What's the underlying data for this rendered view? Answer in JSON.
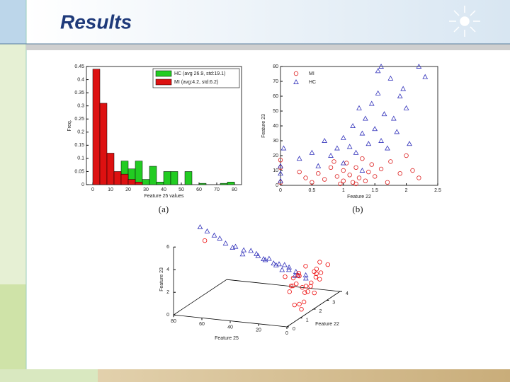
{
  "slide_title": "Results",
  "chart_data": [
    {
      "type": "histogram",
      "caption": "(a)",
      "xlabel": "Feature 25 values",
      "ylabel": "Freq.",
      "bins": [
        0,
        4,
        8,
        12,
        16,
        20,
        24,
        28,
        32,
        36,
        40,
        44,
        48,
        52,
        56,
        60,
        64,
        68,
        72,
        76,
        80,
        84
      ],
      "series": [
        {
          "name": "HC (avg 26.9, std:19.1)",
          "color": "#22cc22",
          "values": [
            0,
            0,
            0,
            0.04,
            0.09,
            0.06,
            0.09,
            0.02,
            0.07,
            0.01,
            0.05,
            0.05,
            0,
            0.05,
            0,
            0.005,
            0,
            0,
            0.005,
            0.01,
            0
          ]
        },
        {
          "name": "MI (avg:4.2, std:6.2)",
          "color": "#dd1111",
          "values": [
            0.44,
            0.31,
            0.12,
            0.05,
            0.04,
            0.02,
            0.01,
            0,
            0,
            0,
            0,
            0,
            0,
            0,
            0,
            0,
            0,
            0,
            0,
            0,
            0
          ]
        }
      ],
      "xlim": [
        -3.6,
        84
      ],
      "xticks": [
        0,
        10,
        20,
        30,
        40,
        50,
        60,
        70,
        80
      ],
      "ylim": [
        0,
        0.45
      ],
      "yticks": [
        0,
        0.05,
        0.1,
        0.15,
        0.2,
        0.25,
        0.3,
        0.35,
        0.4,
        0.45
      ],
      "legend": "upper right"
    },
    {
      "type": "scatter",
      "caption": "(b)",
      "xlabel": "Feature 22",
      "ylabel": "Feature 23",
      "series": [
        {
          "name": "MI",
          "color": "#dd2222",
          "marker": "circle",
          "x": [
            0,
            0,
            0,
            0.4,
            0.5,
            0.6,
            0.7,
            0.8,
            0.9,
            0.95,
            1,
            1,
            1.05,
            1.1,
            1.15,
            1.2,
            1.25,
            1.3,
            1.35,
            1.4,
            1.45,
            1.5,
            1.6,
            1.7,
            1.75,
            1.9,
            2,
            2.1,
            2.2,
            0.3,
            1.2,
            0.85
          ],
          "y": [
            2,
            12,
            17,
            5,
            2,
            8,
            4,
            12,
            6,
            1,
            3,
            10,
            15,
            7,
            2,
            12,
            5,
            18,
            3,
            9,
            14,
            6,
            11,
            2,
            16,
            8,
            20,
            10,
            5,
            9,
            1,
            16
          ]
        },
        {
          "name": "HC",
          "color": "#3333bb",
          "marker": "triangle",
          "x": [
            0,
            0,
            0,
            0.05,
            0.3,
            0.5,
            0.6,
            0.7,
            0.8,
            0.9,
            1,
            1,
            1.1,
            1.15,
            1.2,
            1.25,
            1.3,
            1.35,
            1.4,
            1.45,
            1.5,
            1.55,
            1.6,
            1.65,
            1.7,
            1.75,
            1.8,
            1.85,
            1.9,
            1.95,
            2,
            2.05,
            2.2,
            2.3,
            1.6,
            1.55,
            1.3
          ],
          "y": [
            3,
            8,
            13,
            25,
            18,
            22,
            13,
            30,
            20,
            25,
            32,
            15,
            26,
            40,
            22,
            52,
            35,
            45,
            28,
            55,
            38,
            62,
            30,
            48,
            25,
            72,
            45,
            36,
            60,
            65,
            52,
            28,
            80,
            73,
            80,
            77,
            10
          ]
        }
      ],
      "xlim": [
        0,
        2.5
      ],
      "xticks": [
        0,
        0.5,
        1,
        1.5,
        2,
        2.5
      ],
      "ylim": [
        0,
        80
      ],
      "yticks": [
        0,
        10,
        20,
        30,
        40,
        50,
        60,
        70,
        80
      ],
      "legend": "upper left"
    },
    {
      "type": "scatter3d",
      "xlabel": "Feature 25",
      "ylabel": "Feature 22",
      "zlabel": "Feature 23",
      "series": [
        {
          "name": "HC",
          "color": "#3333bb",
          "marker": "triangle",
          "x": [
            80,
            75,
            70,
            68,
            62,
            58,
            55,
            52,
            50,
            46,
            44,
            40,
            38,
            36,
            34,
            30,
            28,
            26,
            24,
            22,
            20,
            18,
            15,
            12,
            10,
            14,
            32
          ],
          "y": [
            2,
            2,
            2,
            2.2,
            2,
            2.1,
            2,
            2.3,
            2,
            2.2,
            2.4,
            2.1,
            2.3,
            2.5,
            2,
            2.2,
            2.4,
            2.6,
            2.2,
            2.5,
            2.3,
            2.6,
            2.4,
            2.7,
            2.5,
            2.1,
            2.6
          ],
          "z": [
            6.2,
            5.9,
            5.6,
            5.2,
            5,
            4.6,
            4.8,
            4.3,
            4.2,
            4.4,
            4,
            4.1,
            3.7,
            3.6,
            3.9,
            3.5,
            3.3,
            3.1,
            3,
            2.8,
            3.2,
            2.6,
            2.5,
            2.3,
            2.2,
            2.7,
            3
          ]
        },
        {
          "name": "MI",
          "color": "#ee1111",
          "marker": "circle",
          "x": [
            2,
            4,
            6,
            8,
            3,
            5,
            7,
            10,
            12,
            9,
            1,
            4,
            6,
            11,
            14,
            16,
            3,
            8,
            13,
            2,
            5,
            7,
            10,
            15,
            18,
            20,
            4,
            9,
            72,
            12
          ],
          "y": [
            1.5,
            2,
            1.8,
            2.2,
            2.5,
            3,
            2.8,
            2,
            1.6,
            2.4,
            1.2,
            1,
            3.2,
            3,
            2.2,
            2.6,
            3.4,
            1.3,
            2.8,
            2,
            2.6,
            1.6,
            3.3,
            1.8,
            2.4,
            2,
            2.9,
            1.9,
            1.5,
            3.5
          ],
          "z": [
            1,
            1.5,
            2,
            1.2,
            2.4,
            1.8,
            2.6,
            2.8,
            2.2,
            1.6,
            0.6,
            1.1,
            2.2,
            1.4,
            1.9,
            2.5,
            2.8,
            2.5,
            3,
            2,
            0.9,
            3.2,
            2.4,
            1.5,
            2.2,
            2.6,
            3.4,
            0.4,
            5.5,
            1.8
          ]
        }
      ],
      "xlim": [
        0,
        80
      ],
      "xticks": [
        0,
        20,
        40,
        60,
        80
      ],
      "ylim": [
        0,
        4
      ],
      "yticks": [
        0,
        1,
        2,
        3,
        4
      ],
      "zlim": [
        0,
        6
      ],
      "zticks": [
        0,
        2,
        4,
        6
      ]
    }
  ]
}
